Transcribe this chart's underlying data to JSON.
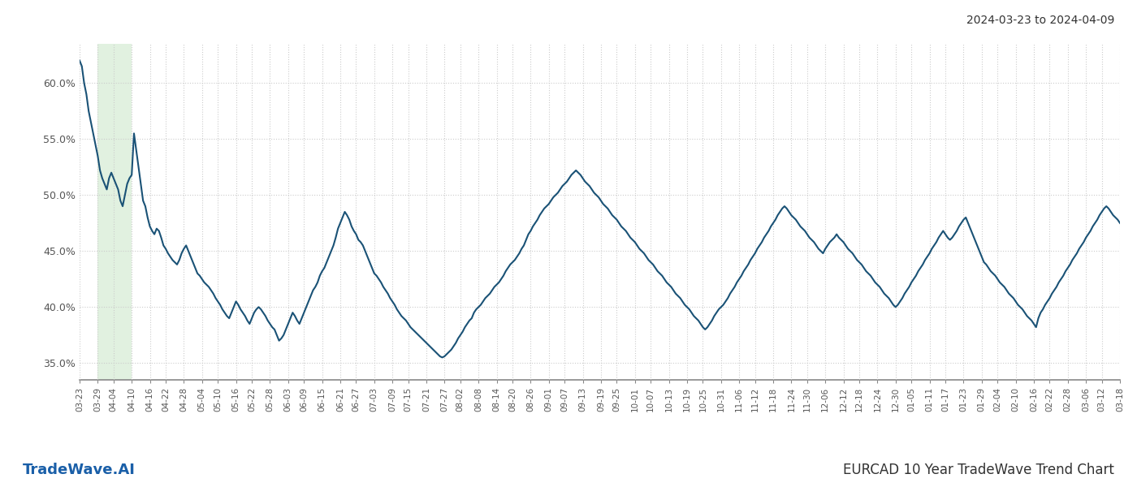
{
  "title_top_right": "2024-03-23 to 2024-04-09",
  "title_bottom_right": "EURCAD 10 Year TradeWave Trend Chart",
  "title_bottom_left": "TradeWave.AI",
  "line_color": "#1a5276",
  "line_width": 1.5,
  "highlight_color": "#d5ecd4",
  "highlight_alpha": 0.7,
  "background_color": "#ffffff",
  "grid_color": "#cccccc",
  "grid_style": ":",
  "ylim": [
    0.335,
    0.635
  ],
  "yticks": [
    0.35,
    0.4,
    0.45,
    0.5,
    0.55,
    0.6
  ],
  "ytick_labels": [
    "35.0%",
    "40.0%",
    "45.0%",
    "50.0%",
    "55.0%",
    "60.0%"
  ],
  "xtick_labels": [
    "03-23",
    "03-29",
    "04-04",
    "04-10",
    "04-16",
    "04-22",
    "04-28",
    "05-04",
    "05-10",
    "05-16",
    "05-22",
    "05-28",
    "06-03",
    "06-09",
    "06-15",
    "06-21",
    "06-27",
    "07-03",
    "07-09",
    "07-15",
    "07-21",
    "07-27",
    "08-02",
    "08-08",
    "08-14",
    "08-20",
    "08-26",
    "09-01",
    "09-07",
    "09-13",
    "09-19",
    "09-25",
    "10-01",
    "10-07",
    "10-13",
    "10-19",
    "10-25",
    "10-31",
    "11-06",
    "11-12",
    "11-18",
    "11-24",
    "11-30",
    "12-06",
    "12-12",
    "12-18",
    "12-24",
    "12-30",
    "01-05",
    "01-11",
    "01-17",
    "01-23",
    "01-29",
    "02-04",
    "02-10",
    "02-16",
    "02-22",
    "02-28",
    "03-06",
    "03-12",
    "03-18"
  ],
  "highlight_x_start_label": "03-29",
  "highlight_x_end_label": "04-10",
  "y_values": [
    0.62,
    0.615,
    0.6,
    0.59,
    0.575,
    0.565,
    0.555,
    0.545,
    0.535,
    0.522,
    0.515,
    0.51,
    0.505,
    0.515,
    0.52,
    0.515,
    0.51,
    0.505,
    0.495,
    0.49,
    0.5,
    0.51,
    0.515,
    0.518,
    0.555,
    0.54,
    0.525,
    0.51,
    0.495,
    0.49,
    0.48,
    0.472,
    0.468,
    0.465,
    0.47,
    0.468,
    0.462,
    0.455,
    0.452,
    0.448,
    0.445,
    0.442,
    0.44,
    0.438,
    0.442,
    0.448,
    0.452,
    0.455,
    0.45,
    0.445,
    0.44,
    0.435,
    0.43,
    0.428,
    0.425,
    0.422,
    0.42,
    0.418,
    0.415,
    0.412,
    0.408,
    0.405,
    0.402,
    0.398,
    0.395,
    0.392,
    0.39,
    0.395,
    0.4,
    0.405,
    0.402,
    0.398,
    0.395,
    0.392,
    0.388,
    0.385,
    0.39,
    0.395,
    0.398,
    0.4,
    0.398,
    0.395,
    0.392,
    0.388,
    0.385,
    0.382,
    0.38,
    0.375,
    0.37,
    0.372,
    0.375,
    0.38,
    0.385,
    0.39,
    0.395,
    0.392,
    0.388,
    0.385,
    0.39,
    0.395,
    0.4,
    0.405,
    0.41,
    0.415,
    0.418,
    0.422,
    0.428,
    0.432,
    0.435,
    0.44,
    0.445,
    0.45,
    0.455,
    0.462,
    0.47,
    0.475,
    0.48,
    0.485,
    0.482,
    0.478,
    0.472,
    0.468,
    0.465,
    0.46,
    0.458,
    0.455,
    0.45,
    0.445,
    0.44,
    0.435,
    0.43,
    0.428,
    0.425,
    0.422,
    0.418,
    0.415,
    0.412,
    0.408,
    0.405,
    0.402,
    0.398,
    0.395,
    0.392,
    0.39,
    0.388,
    0.385,
    0.382,
    0.38,
    0.378,
    0.376,
    0.374,
    0.372,
    0.37,
    0.368,
    0.366,
    0.364,
    0.362,
    0.36,
    0.358,
    0.356,
    0.355,
    0.356,
    0.358,
    0.36,
    0.362,
    0.365,
    0.368,
    0.372,
    0.375,
    0.378,
    0.382,
    0.385,
    0.388,
    0.39,
    0.395,
    0.398,
    0.4,
    0.402,
    0.405,
    0.408,
    0.41,
    0.412,
    0.415,
    0.418,
    0.42,
    0.422,
    0.425,
    0.428,
    0.432,
    0.435,
    0.438,
    0.44,
    0.442,
    0.445,
    0.448,
    0.452,
    0.455,
    0.46,
    0.465,
    0.468,
    0.472,
    0.475,
    0.478,
    0.482,
    0.485,
    0.488,
    0.49,
    0.492,
    0.495,
    0.498,
    0.5,
    0.502,
    0.505,
    0.508,
    0.51,
    0.512,
    0.515,
    0.518,
    0.52,
    0.522,
    0.52,
    0.518,
    0.515,
    0.512,
    0.51,
    0.508,
    0.505,
    0.502,
    0.5,
    0.498,
    0.495,
    0.492,
    0.49,
    0.488,
    0.485,
    0.482,
    0.48,
    0.478,
    0.475,
    0.472,
    0.47,
    0.468,
    0.465,
    0.462,
    0.46,
    0.458,
    0.455,
    0.452,
    0.45,
    0.448,
    0.445,
    0.442,
    0.44,
    0.438,
    0.435,
    0.432,
    0.43,
    0.428,
    0.425,
    0.422,
    0.42,
    0.418,
    0.415,
    0.412,
    0.41,
    0.408,
    0.405,
    0.402,
    0.4,
    0.398,
    0.395,
    0.392,
    0.39,
    0.388,
    0.385,
    0.382,
    0.38,
    0.382,
    0.385,
    0.388,
    0.392,
    0.395,
    0.398,
    0.4,
    0.402,
    0.405,
    0.408,
    0.412,
    0.415,
    0.418,
    0.422,
    0.425,
    0.428,
    0.432,
    0.435,
    0.438,
    0.442,
    0.445,
    0.448,
    0.452,
    0.455,
    0.458,
    0.462,
    0.465,
    0.468,
    0.472,
    0.475,
    0.478,
    0.482,
    0.485,
    0.488,
    0.49,
    0.488,
    0.485,
    0.482,
    0.48,
    0.478,
    0.475,
    0.472,
    0.47,
    0.468,
    0.465,
    0.462,
    0.46,
    0.458,
    0.455,
    0.452,
    0.45,
    0.448,
    0.452,
    0.455,
    0.458,
    0.46,
    0.462,
    0.465,
    0.462,
    0.46,
    0.458,
    0.455,
    0.452,
    0.45,
    0.448,
    0.445,
    0.442,
    0.44,
    0.438,
    0.435,
    0.432,
    0.43,
    0.428,
    0.425,
    0.422,
    0.42,
    0.418,
    0.415,
    0.412,
    0.41,
    0.408,
    0.405,
    0.402,
    0.4,
    0.402,
    0.405,
    0.408,
    0.412,
    0.415,
    0.418,
    0.422,
    0.425,
    0.428,
    0.432,
    0.435,
    0.438,
    0.442,
    0.445,
    0.448,
    0.452,
    0.455,
    0.458,
    0.462,
    0.465,
    0.468,
    0.465,
    0.462,
    0.46,
    0.462,
    0.465,
    0.468,
    0.472,
    0.475,
    0.478,
    0.48,
    0.475,
    0.47,
    0.465,
    0.46,
    0.455,
    0.45,
    0.445,
    0.44,
    0.438,
    0.435,
    0.432,
    0.43,
    0.428,
    0.425,
    0.422,
    0.42,
    0.418,
    0.415,
    0.412,
    0.41,
    0.408,
    0.405,
    0.402,
    0.4,
    0.398,
    0.395,
    0.392,
    0.39,
    0.388,
    0.385,
    0.382,
    0.39,
    0.395,
    0.398,
    0.402,
    0.405,
    0.408,
    0.412,
    0.415,
    0.418,
    0.422,
    0.425,
    0.428,
    0.432,
    0.435,
    0.438,
    0.442,
    0.445,
    0.448,
    0.452,
    0.455,
    0.458,
    0.462,
    0.465,
    0.468,
    0.472,
    0.475,
    0.478,
    0.482,
    0.485,
    0.488,
    0.49,
    0.488,
    0.485,
    0.482,
    0.48,
    0.478,
    0.475
  ]
}
